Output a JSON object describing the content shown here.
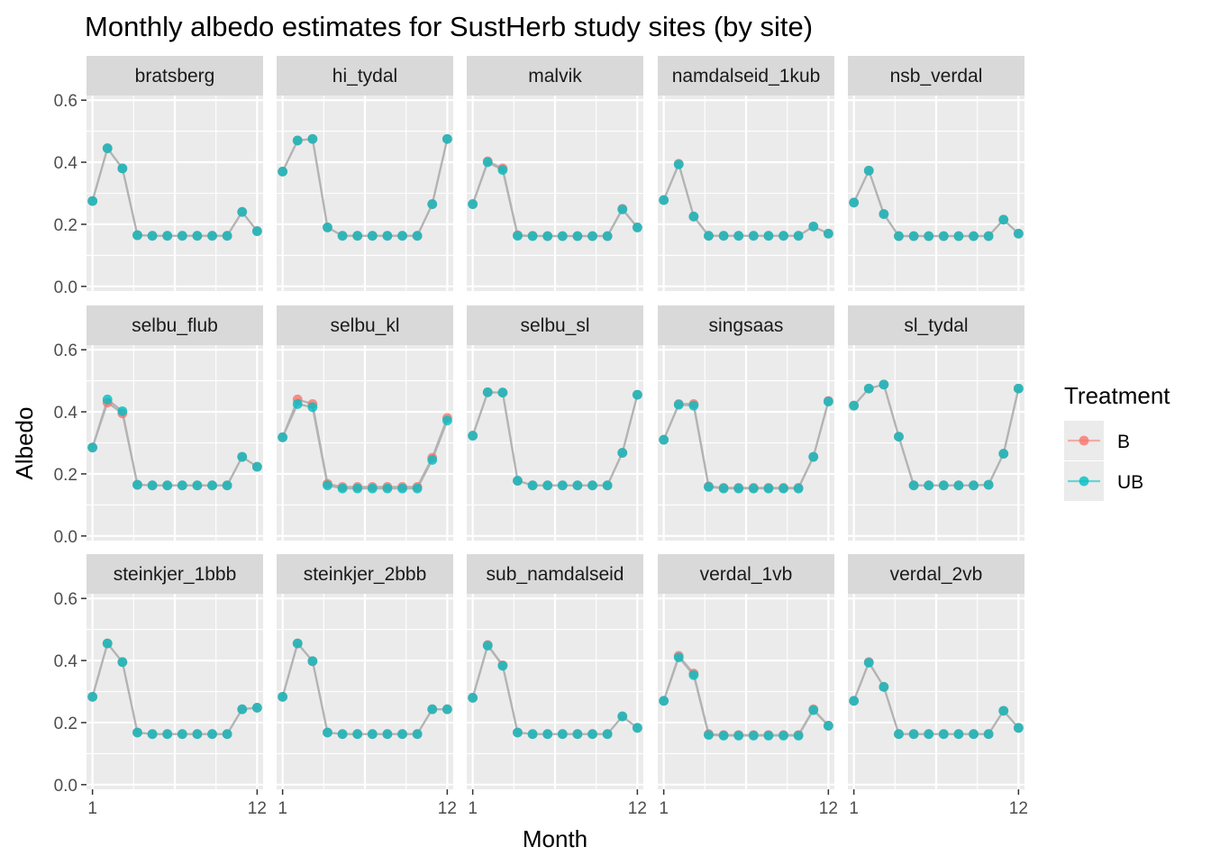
{
  "chart_data": {
    "type": "line",
    "title": "Monthly albedo estimates for SustHerb study sites (by site)",
    "xlabel": "Month",
    "ylabel": "Albedo",
    "facet_layout": "3 rows x 5 columns",
    "x_ticks": [
      1,
      12
    ],
    "y_ticks": [
      "0.0",
      "0.2",
      "0.4",
      "0.6"
    ],
    "ylim": [
      -0.015,
      0.615
    ],
    "xlim": [
      0.6,
      12.4
    ],
    "grid": true,
    "legend": {
      "title": "Treatment",
      "placement": "right",
      "entries": [
        {
          "name": "B",
          "color": "#F8766D"
        },
        {
          "name": "UB",
          "color": "#00BFC4"
        }
      ]
    },
    "colors": {
      "panel_bg": "#EBEBEB",
      "strip_bg": "#D9D9D9",
      "grid": "#FFFFFF",
      "line": "#B3B3B3",
      "B": "#F8766D",
      "UB": "#00BFC4"
    },
    "x": [
      1,
      2,
      3,
      4,
      5,
      6,
      7,
      8,
      9,
      10,
      11,
      12
    ],
    "facets": [
      {
        "site": "bratsberg",
        "B": [
          0.275,
          0.445,
          0.38,
          0.165,
          0.163,
          0.163,
          0.163,
          0.163,
          0.163,
          0.163,
          0.24,
          0.178
        ],
        "UB": [
          0.275,
          0.445,
          0.38,
          0.165,
          0.163,
          0.163,
          0.163,
          0.163,
          0.163,
          0.163,
          0.24,
          0.178
        ]
      },
      {
        "site": "hi_tydal",
        "B": [
          0.37,
          0.47,
          0.475,
          0.19,
          0.163,
          0.163,
          0.163,
          0.163,
          0.163,
          0.163,
          0.265,
          0.475
        ],
        "UB": [
          0.37,
          0.47,
          0.475,
          0.19,
          0.163,
          0.163,
          0.163,
          0.163,
          0.163,
          0.163,
          0.265,
          0.475
        ]
      },
      {
        "site": "malvik",
        "B": [
          0.265,
          0.403,
          0.38,
          0.165,
          0.163,
          0.162,
          0.162,
          0.162,
          0.162,
          0.162,
          0.25,
          0.19
        ],
        "UB": [
          0.265,
          0.4,
          0.375,
          0.163,
          0.162,
          0.162,
          0.162,
          0.162,
          0.162,
          0.162,
          0.248,
          0.19
        ]
      },
      {
        "site": "namdalseid_1kub",
        "B": [
          0.278,
          0.395,
          0.225,
          0.163,
          0.163,
          0.163,
          0.163,
          0.163,
          0.163,
          0.163,
          0.193,
          0.17
        ],
        "UB": [
          0.278,
          0.393,
          0.225,
          0.163,
          0.163,
          0.163,
          0.163,
          0.163,
          0.163,
          0.163,
          0.193,
          0.17
        ]
      },
      {
        "site": "nsb_verdal",
        "B": [
          0.27,
          0.373,
          0.233,
          0.162,
          0.162,
          0.162,
          0.162,
          0.162,
          0.162,
          0.162,
          0.215,
          0.17
        ],
        "UB": [
          0.27,
          0.373,
          0.233,
          0.162,
          0.162,
          0.162,
          0.162,
          0.162,
          0.162,
          0.162,
          0.215,
          0.17
        ]
      },
      {
        "site": "selbu_flub",
        "B": [
          0.285,
          0.43,
          0.395,
          0.165,
          0.163,
          0.163,
          0.163,
          0.163,
          0.163,
          0.163,
          0.255,
          0.223
        ],
        "UB": [
          0.285,
          0.44,
          0.402,
          0.165,
          0.163,
          0.163,
          0.163,
          0.163,
          0.163,
          0.163,
          0.255,
          0.223
        ]
      },
      {
        "site": "selbu_kl",
        "B": [
          0.318,
          0.44,
          0.425,
          0.168,
          0.158,
          0.158,
          0.158,
          0.158,
          0.158,
          0.158,
          0.252,
          0.38
        ],
        "UB": [
          0.318,
          0.425,
          0.415,
          0.163,
          0.153,
          0.153,
          0.153,
          0.153,
          0.153,
          0.153,
          0.245,
          0.372
        ]
      },
      {
        "site": "selbu_sl",
        "B": [
          0.323,
          0.463,
          0.462,
          0.178,
          0.163,
          0.163,
          0.163,
          0.163,
          0.163,
          0.163,
          0.268,
          0.455
        ],
        "UB": [
          0.323,
          0.463,
          0.462,
          0.178,
          0.163,
          0.163,
          0.163,
          0.163,
          0.163,
          0.163,
          0.268,
          0.455
        ]
      },
      {
        "site": "singsaas",
        "B": [
          0.31,
          0.425,
          0.425,
          0.16,
          0.155,
          0.155,
          0.155,
          0.155,
          0.155,
          0.155,
          0.255,
          0.435
        ],
        "UB": [
          0.31,
          0.423,
          0.42,
          0.158,
          0.153,
          0.153,
          0.153,
          0.153,
          0.153,
          0.153,
          0.255,
          0.433
        ]
      },
      {
        "site": "sl_tydal",
        "B": [
          0.42,
          0.475,
          0.488,
          0.32,
          0.163,
          0.163,
          0.163,
          0.163,
          0.163,
          0.165,
          0.265,
          0.475
        ],
        "UB": [
          0.42,
          0.475,
          0.488,
          0.32,
          0.163,
          0.163,
          0.163,
          0.163,
          0.163,
          0.165,
          0.265,
          0.475
        ]
      },
      {
        "site": "steinkjer_1bbb",
        "B": [
          0.283,
          0.455,
          0.395,
          0.168,
          0.163,
          0.163,
          0.163,
          0.163,
          0.163,
          0.163,
          0.243,
          0.248
        ],
        "UB": [
          0.283,
          0.455,
          0.395,
          0.168,
          0.163,
          0.163,
          0.163,
          0.163,
          0.163,
          0.163,
          0.243,
          0.248
        ]
      },
      {
        "site": "steinkjer_2bbb",
        "B": [
          0.283,
          0.455,
          0.398,
          0.168,
          0.163,
          0.163,
          0.163,
          0.163,
          0.163,
          0.163,
          0.243,
          0.243
        ],
        "UB": [
          0.283,
          0.455,
          0.398,
          0.168,
          0.163,
          0.163,
          0.163,
          0.163,
          0.163,
          0.163,
          0.243,
          0.243
        ]
      },
      {
        "site": "sub_namdalseid",
        "B": [
          0.28,
          0.45,
          0.385,
          0.168,
          0.163,
          0.163,
          0.163,
          0.163,
          0.163,
          0.163,
          0.22,
          0.183
        ],
        "UB": [
          0.28,
          0.448,
          0.383,
          0.168,
          0.163,
          0.163,
          0.163,
          0.163,
          0.163,
          0.163,
          0.22,
          0.183
        ]
      },
      {
        "site": "verdal_1vb",
        "B": [
          0.27,
          0.415,
          0.358,
          0.163,
          0.16,
          0.16,
          0.16,
          0.16,
          0.16,
          0.16,
          0.243,
          0.19
        ],
        "UB": [
          0.27,
          0.41,
          0.353,
          0.16,
          0.158,
          0.158,
          0.158,
          0.158,
          0.158,
          0.158,
          0.24,
          0.19
        ]
      },
      {
        "site": "verdal_2vb",
        "B": [
          0.27,
          0.395,
          0.315,
          0.163,
          0.163,
          0.163,
          0.163,
          0.163,
          0.163,
          0.163,
          0.238,
          0.183
        ],
        "UB": [
          0.27,
          0.393,
          0.315,
          0.163,
          0.163,
          0.163,
          0.163,
          0.163,
          0.163,
          0.163,
          0.238,
          0.183
        ]
      }
    ]
  }
}
